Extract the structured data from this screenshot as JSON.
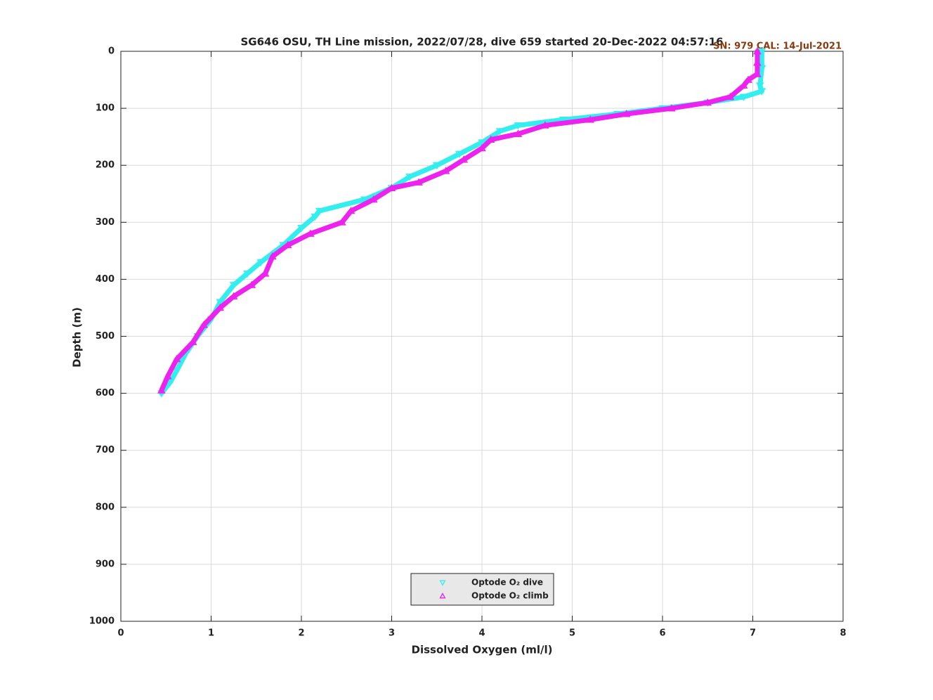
{
  "chart_data": {
    "type": "scatter",
    "title": "SG646 OSU, TH Line mission, 2022/07/28, dive 659 started 20-Dec-2022 04:57:16",
    "annotation": "SN: 979  CAL: 14-Jul-2021",
    "x_label": "Dissolved Oxygen (ml/l)",
    "y_label": "Depth (m)",
    "xlim": [
      0,
      8
    ],
    "xticks": [
      0,
      1,
      2,
      3,
      4,
      5,
      6,
      7,
      8
    ],
    "ylim": [
      0,
      1000
    ],
    "yticks": [
      0,
      100,
      200,
      300,
      400,
      500,
      600,
      700,
      800,
      900,
      1000
    ],
    "y_inverted": true,
    "grid": true,
    "legend": "bottom",
    "series": [
      {
        "name": "Optode O₂ dive",
        "color": "#33eeee",
        "marker": "triangle-down",
        "x": [
          7.1,
          7.1,
          7.08,
          7.1,
          6.9,
          6.5,
          6.0,
          5.5,
          4.9,
          4.4,
          4.2,
          4.0,
          3.75,
          3.5,
          3.2,
          3.0,
          2.7,
          2.2,
          2.15,
          2.0,
          1.8,
          1.55,
          1.4,
          1.25,
          1.1,
          1.0,
          0.85,
          0.72,
          0.62,
          0.55,
          0.45
        ],
        "values": [
          0,
          30,
          60,
          70,
          80,
          90,
          100,
          110,
          120,
          130,
          140,
          160,
          180,
          200,
          220,
          240,
          260,
          280,
          290,
          310,
          340,
          370,
          390,
          410,
          440,
          470,
          500,
          530,
          560,
          580,
          600
        ]
      },
      {
        "name": "Optode O₂ climb",
        "color": "#ee22ee",
        "marker": "triangle-up",
        "x": [
          0.45,
          0.52,
          0.62,
          0.8,
          0.92,
          1.1,
          1.25,
          1.45,
          1.6,
          1.68,
          1.85,
          2.1,
          2.45,
          2.55,
          2.8,
          3.0,
          3.3,
          3.6,
          3.8,
          4.0,
          4.1,
          4.4,
          4.7,
          5.2,
          5.6,
          6.1,
          6.5,
          6.75,
          6.9,
          6.95,
          7.05,
          7.05,
          7.05
        ],
        "values": [
          595,
          570,
          540,
          510,
          480,
          450,
          430,
          410,
          390,
          360,
          340,
          320,
          300,
          280,
          260,
          240,
          230,
          210,
          190,
          170,
          155,
          145,
          130,
          120,
          110,
          100,
          90,
          80,
          60,
          50,
          40,
          20,
          0
        ]
      }
    ]
  }
}
